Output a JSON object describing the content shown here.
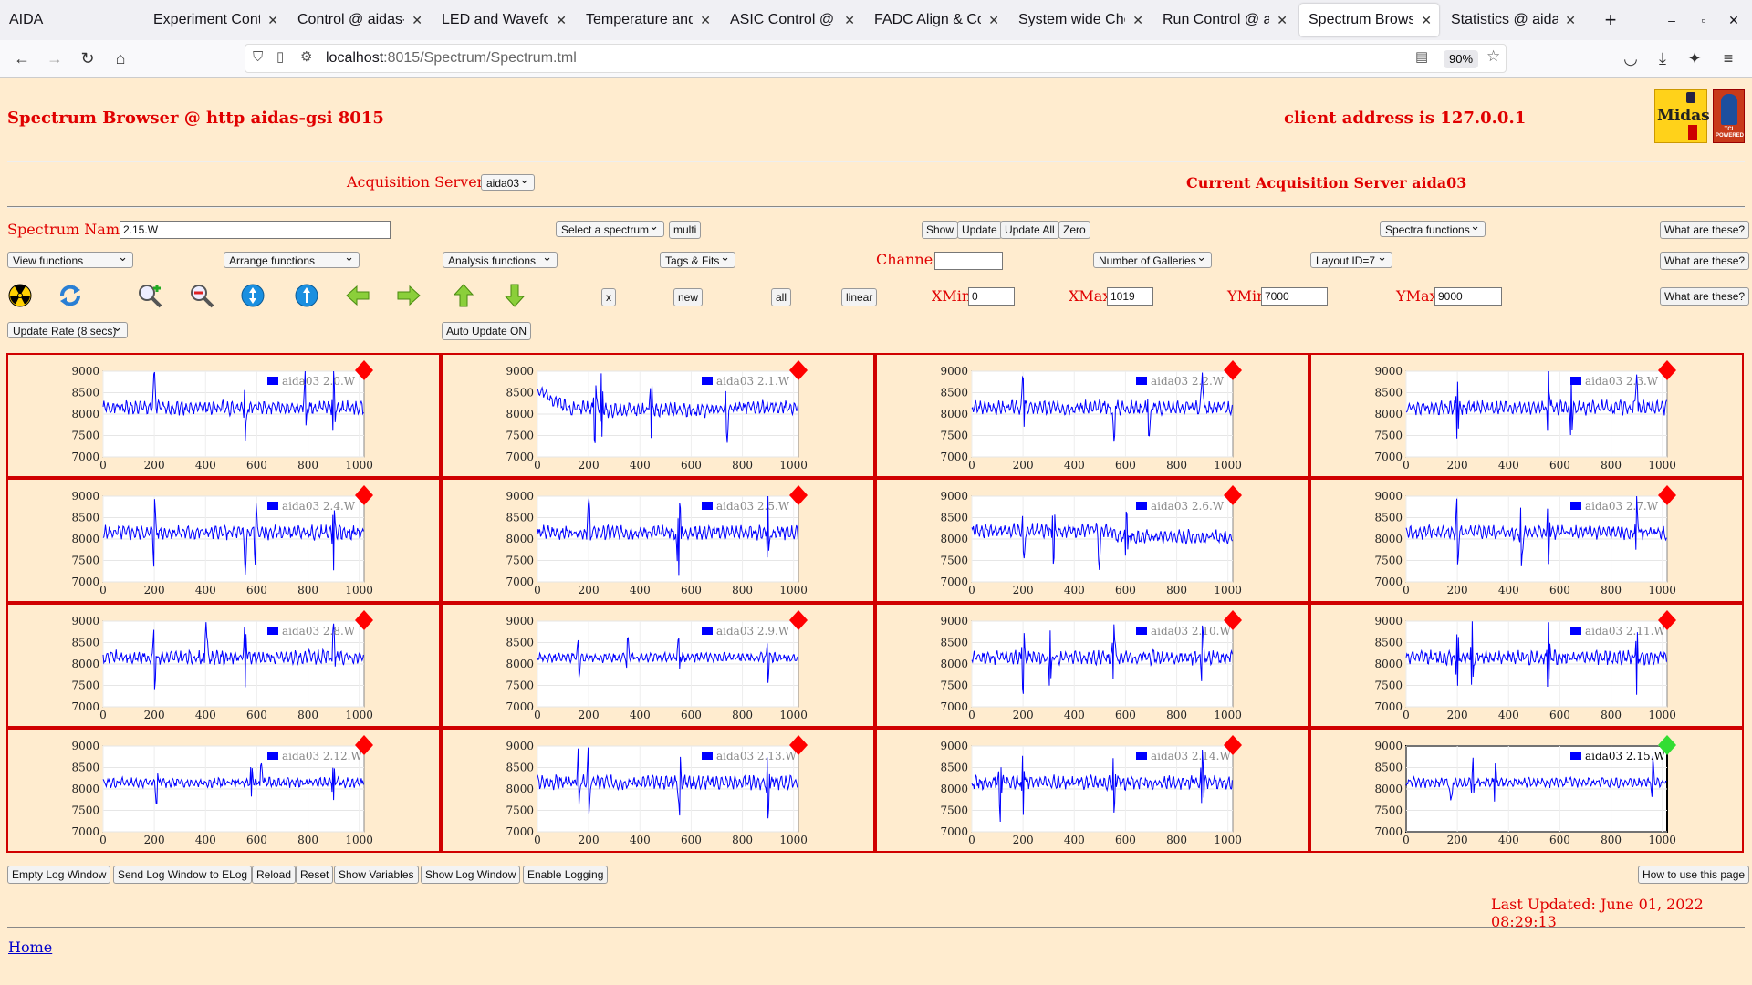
{
  "browser": {
    "tabs": [
      {
        "label": "AIDA",
        "active": false
      },
      {
        "label": "Experiment Contro",
        "active": false
      },
      {
        "label": "Control @ aidas-gs",
        "active": false
      },
      {
        "label": "LED and Waveform",
        "active": false
      },
      {
        "label": "Temperature and st",
        "active": false
      },
      {
        "label": "ASIC Control @ aid",
        "active": false
      },
      {
        "label": "FADC Align & Cont",
        "active": false
      },
      {
        "label": "System wide Check",
        "active": false
      },
      {
        "label": "Run Control @ aida",
        "active": false
      },
      {
        "label": "Spectrum Browser",
        "active": true
      },
      {
        "label": "Statistics @ aidas-g",
        "active": false
      }
    ],
    "url_host": "localhost",
    "url_rest": ":8015/Spectrum/Spectrum.tml",
    "zoom": "90%"
  },
  "header": {
    "title": "Spectrum Browser @ http aidas-gsi 8015",
    "client_address": "client address is 127.0.0.1",
    "logo_midas": "Midas",
    "logo_tcl": "TCL POWERED"
  },
  "servers": {
    "label": "Acquisition Servers",
    "selected": "aida03",
    "current": "Current Acquisition Server aida03"
  },
  "controls": {
    "spectrum_name_label": "Spectrum Name:",
    "spectrum_name_value": "2.15.W",
    "select_spectrum": "Select a spectrum",
    "multi": "multi",
    "show": "Show",
    "update": "Update",
    "update_all": "Update All",
    "zero": "Zero",
    "spectra_functions": "Spectra functions",
    "what1": "What are these?",
    "view_functions": "View functions",
    "arrange_functions": "Arrange functions",
    "analysis_functions": "Analysis functions",
    "tags_fits": "Tags & Fits",
    "channel_label": "Channel:",
    "channel_value": "",
    "galleries": "Number of Galleries",
    "layout": "Layout ID=7",
    "what2": "What are these?",
    "x": "x",
    "new": "new",
    "all": "all",
    "linear": "linear",
    "xmin_label": "XMin",
    "xmin": "0",
    "xmax_label": "XMax",
    "xmax": "1019",
    "ymin_label": "YMin",
    "ymin": "7000",
    "ymax_label": "YMax",
    "ymax": "9000",
    "what3": "What are these?",
    "update_rate": "Update Rate (8 secs)",
    "auto_update": "Auto Update ON"
  },
  "spectra": [
    {
      "name": "aida03 2.0.W",
      "status": "red",
      "seed": 1,
      "style": "spiky"
    },
    {
      "name": "aida03 2.1.W",
      "status": "red",
      "seed": 2,
      "style": "decay"
    },
    {
      "name": "aida03 2.2.W",
      "status": "red",
      "seed": 3,
      "style": "spiky"
    },
    {
      "name": "aida03 2.3.W",
      "status": "red",
      "seed": 4,
      "style": "spiky"
    },
    {
      "name": "aida03 2.4.W",
      "status": "red",
      "seed": 5,
      "style": "spiky"
    },
    {
      "name": "aida03 2.5.W",
      "status": "red",
      "seed": 6,
      "style": "spiky"
    },
    {
      "name": "aida03 2.6.W",
      "status": "red",
      "seed": 7,
      "style": "drop"
    },
    {
      "name": "aida03 2.7.W",
      "status": "red",
      "seed": 8,
      "style": "spiky"
    },
    {
      "name": "aida03 2.8.W",
      "status": "red",
      "seed": 9,
      "style": "spiky"
    },
    {
      "name": "aida03 2.9.W",
      "status": "red",
      "seed": 10,
      "style": "calm"
    },
    {
      "name": "aida03 2.10.W",
      "status": "red",
      "seed": 11,
      "style": "spiky"
    },
    {
      "name": "aida03 2.11.W",
      "status": "red",
      "seed": 12,
      "style": "spiky"
    },
    {
      "name": "aida03 2.12.W",
      "status": "red",
      "seed": 13,
      "style": "calm"
    },
    {
      "name": "aida03 2.13.W",
      "status": "red",
      "seed": 14,
      "style": "spiky"
    },
    {
      "name": "aida03 2.14.W",
      "status": "red",
      "seed": 15,
      "style": "spiky"
    },
    {
      "name": "aida03 2.15.W",
      "status": "green",
      "seed": 16,
      "style": "calm"
    }
  ],
  "axes": {
    "x_ticks": [
      "0",
      "200",
      "400",
      "600",
      "800",
      "1000"
    ],
    "y_ticks": [
      "9000",
      "8500",
      "8000",
      "7500",
      "7000"
    ],
    "xmin": 0,
    "xmax": 1019,
    "ymin": 7000,
    "ymax": 9000
  },
  "footer": {
    "buttons": [
      "Empty Log Window",
      "Send Log Window to ELog",
      "Reload",
      "Reset",
      "Show Variables",
      "Show Log Window",
      "Enable Logging"
    ],
    "how_to": "How to use this page",
    "last_updated": "Last Updated: June 01, 2022 08:29:13",
    "home": "Home"
  },
  "colors": {
    "accent": "#e00000",
    "trace": "#0000ff",
    "bg": "#ffeccf",
    "status_red": "#ff0000",
    "status_green": "#33dd33"
  }
}
